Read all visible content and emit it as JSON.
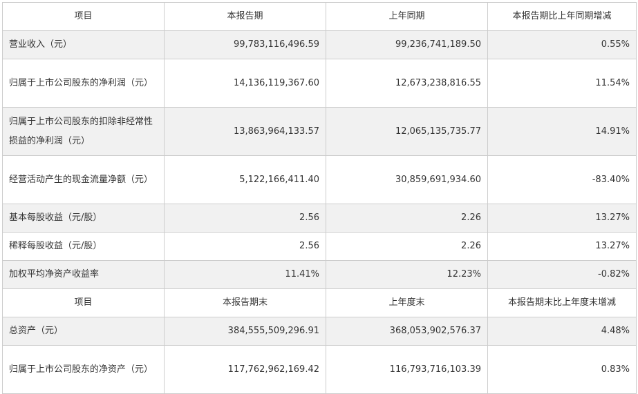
{
  "table": {
    "header1": [
      "项目",
      "本报告期",
      "上年同期",
      "本报告期比上年同期增减"
    ],
    "rows1": [
      {
        "label": "营业收入（元）",
        "current": "99,783,116,496.59",
        "prior": "99,236,741,189.50",
        "change": "0.55%"
      },
      {
        "label": "归属于上市公司股东的净利润（元）",
        "current": "14,136,119,367.60",
        "prior": "12,673,238,816.55",
        "change": "11.54%"
      },
      {
        "label": "归属于上市公司股东的扣除非经常性损益的净利润（元）",
        "current": "13,863,964,133.57",
        "prior": "12,065,135,735.77",
        "change": "14.91%"
      },
      {
        "label": "经营活动产生的现金流量净额（元）",
        "current": "5,122,166,411.40",
        "prior": "30,859,691,934.60",
        "change": "-83.40%"
      },
      {
        "label": "基本每股收益（元/股）",
        "current": "2.56",
        "prior": "2.26",
        "change": "13.27%"
      },
      {
        "label": "稀释每股收益（元/股）",
        "current": "2.56",
        "prior": "2.26",
        "change": "13.27%"
      },
      {
        "label": "加权平均净资产收益率",
        "current": "11.41%",
        "prior": "12.23%",
        "change": "-0.82%"
      }
    ],
    "header2": [
      "项目",
      "本报告期末",
      "上年度末",
      "本报告期末比上年度末增减"
    ],
    "rows2": [
      {
        "label": "总资产（元）",
        "current": "384,555,509,296.91",
        "prior": "368,053,902,576.37",
        "change": "4.48%"
      },
      {
        "label": "归属于上市公司股东的净资产（元）",
        "current": "117,762,962,169.42",
        "prior": "116,793,716,103.39",
        "change": "0.83%"
      }
    ]
  }
}
